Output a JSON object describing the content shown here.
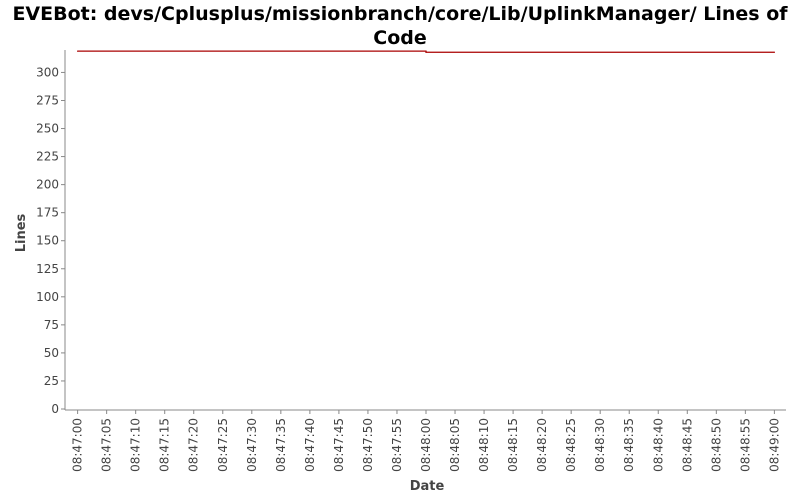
{
  "chart_data": {
    "type": "line",
    "title": "EVEBot: devs/Cplusplus/missionbranch/core/Lib/UplinkManager/ Lines of Code",
    "xlabel": "Date",
    "ylabel": "Lines",
    "ylim": [
      0,
      320
    ],
    "yticks": [
      0,
      25,
      50,
      75,
      100,
      125,
      150,
      175,
      200,
      225,
      250,
      275,
      300
    ],
    "xlim": [
      "08:46:58",
      "08:49:02"
    ],
    "xticks": [
      "08:47:00",
      "08:47:05",
      "08:47:10",
      "08:47:15",
      "08:47:20",
      "08:47:25",
      "08:47:30",
      "08:47:35",
      "08:47:40",
      "08:47:45",
      "08:47:50",
      "08:47:55",
      "08:48:00",
      "08:48:05",
      "08:48:10",
      "08:48:15",
      "08:48:20",
      "08:48:25",
      "08:48:30",
      "08:48:35",
      "08:48:40",
      "08:48:45",
      "08:48:50",
      "08:48:55",
      "08:49:00"
    ],
    "grid": false,
    "series": [
      {
        "color": "#aa0000",
        "points": [
          {
            "x": "08:47:00",
            "y": 319
          },
          {
            "x": "08:48:00",
            "y": 319
          },
          {
            "x": "08:48:00",
            "y": 318
          },
          {
            "x": "08:49:00",
            "y": 318
          }
        ]
      }
    ]
  }
}
